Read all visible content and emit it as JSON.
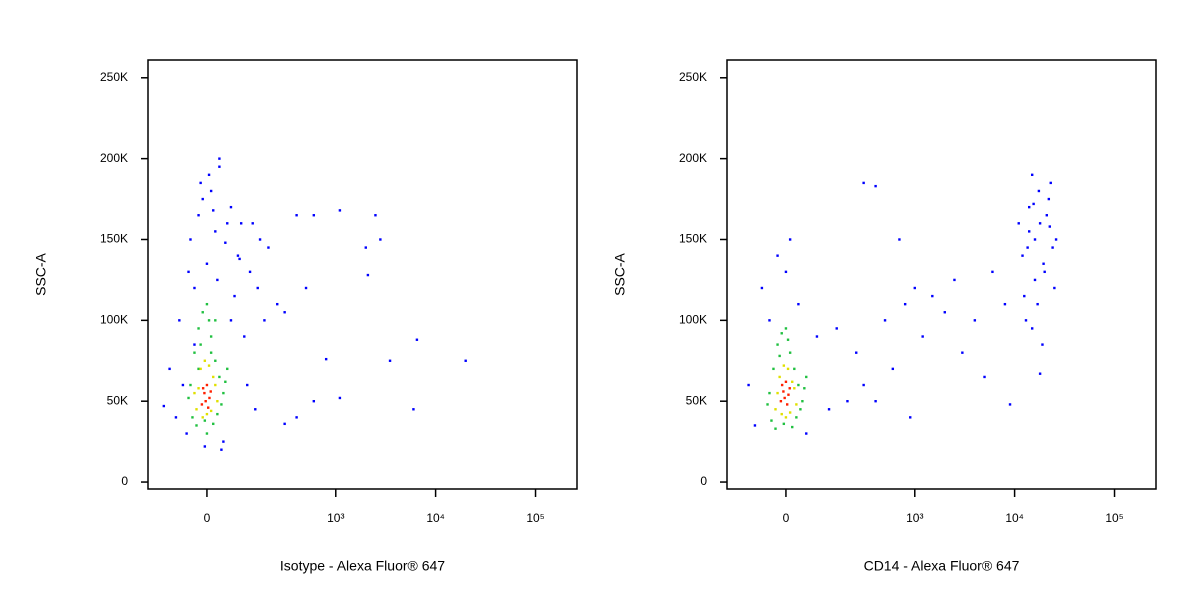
{
  "chart_data": [
    {
      "type": "scatter",
      "xlabel": "Isotype - Alexa Fluor® 647",
      "ylabel": "SSC-A",
      "xscale": "asinh",
      "xscale_width": 103,
      "xlim": [
        -187,
        260000
      ],
      "ylim": [
        -4300,
        261000
      ],
      "xticks": [
        0,
        {
          "value": 1000,
          "label": "10³"
        },
        {
          "value": 10000,
          "label": "10⁴"
        },
        {
          "value": 100000,
          "label": "10⁵"
        }
      ],
      "yticks": [
        0,
        {
          "value": 50000,
          "label": "50K"
        },
        {
          "value": 100000,
          "label": "100K"
        },
        {
          "value": 150000,
          "label": "150K"
        },
        {
          "value": 200000,
          "label": "200K"
        },
        {
          "value": 250000,
          "label": "250K"
        }
      ],
      "series": [
        {
          "color": "#0000ff",
          "x": [
            -60,
            -40,
            -20,
            10,
            30,
            60,
            80,
            120,
            150,
            200,
            250,
            -80,
            -50,
            40,
            100,
            60,
            -30,
            0,
            20,
            50,
            -10,
            90,
            130,
            180,
            400,
            600,
            1100,
            2500,
            2800,
            2000,
            2100,
            500,
            300,
            800,
            3500,
            6500,
            20000,
            6000,
            1100,
            600,
            400,
            300,
            -120,
            -100,
            -70,
            -30,
            110,
            140,
            30,
            70,
            -15,
            5,
            45,
            -45,
            25,
            85,
            160,
            -5,
            35,
            15
          ],
          "y": [
            60000,
            150000,
            165000,
            180000,
            195000,
            170000,
            140000,
            130000,
            120000,
            145000,
            110000,
            40000,
            30000,
            25000,
            90000,
            100000,
            120000,
            135000,
            155000,
            160000,
            175000,
            160000,
            160000,
            100000,
            165000,
            165000,
            168000,
            165000,
            150000,
            145000,
            128000,
            120000,
            105000,
            76000,
            75000,
            88000,
            75000,
            45000,
            52000,
            50000,
            40000,
            36000,
            47000,
            70000,
            100000,
            85000,
            60000,
            45000,
            200000,
            115000,
            185000,
            190000,
            148000,
            130000,
            125000,
            138000,
            150000,
            22000,
            20000,
            168000
          ]
        },
        {
          "color": "#20c040",
          "x": [
            -40,
            -30,
            -20,
            -10,
            0,
            10,
            20,
            30,
            40,
            50,
            -35,
            -25,
            -5,
            15,
            25,
            35,
            -15,
            5,
            45,
            -45,
            0,
            20,
            -20,
            10
          ],
          "y": [
            60000,
            80000,
            95000,
            105000,
            110000,
            90000,
            75000,
            65000,
            55000,
            70000,
            40000,
            35000,
            38000,
            36000,
            42000,
            48000,
            85000,
            100000,
            62000,
            52000,
            30000,
            100000,
            70000,
            80000
          ]
        },
        {
          "color": "#e0e000",
          "x": [
            -25,
            -15,
            -5,
            5,
            15,
            25,
            -20,
            0,
            20,
            -10,
            10,
            -30
          ],
          "y": [
            45000,
            70000,
            75000,
            72000,
            65000,
            50000,
            58000,
            42000,
            60000,
            40000,
            44000,
            55000
          ]
        },
        {
          "color": "#ff2000",
          "x": [
            -12,
            -6,
            0,
            6,
            -9,
            3,
            -3,
            9
          ],
          "y": [
            48000,
            55000,
            60000,
            52000,
            58000,
            46000,
            50000,
            56000
          ]
        }
      ]
    },
    {
      "type": "scatter",
      "xlabel": "CD14 - Alexa Fluor® 647",
      "ylabel": "SSC-A",
      "xscale": "asinh",
      "xscale_width": 103,
      "xlim": [
        -187,
        260000
      ],
      "ylim": [
        -4300,
        261000
      ],
      "xticks": [
        0,
        {
          "value": 1000,
          "label": "10³"
        },
        {
          "value": 10000,
          "label": "10⁴"
        },
        {
          "value": 100000,
          "label": "10⁵"
        }
      ],
      "yticks": [
        0,
        {
          "value": 50000,
          "label": "50K"
        },
        {
          "value": 100000,
          "label": "100K"
        },
        {
          "value": 150000,
          "label": "150K"
        },
        {
          "value": 200000,
          "label": "200K"
        },
        {
          "value": 250000,
          "label": "250K"
        }
      ],
      "series": [
        {
          "color": "#0000ff",
          "x": [
            -60,
            -40,
            0,
            30,
            80,
            150,
            250,
            300,
            400,
            500,
            600,
            700,
            800,
            900,
            1200,
            1500,
            2000,
            2500,
            3000,
            4000,
            5000,
            6000,
            8000,
            9000,
            300,
            400,
            1000,
            12000,
            14000,
            15000,
            16000,
            18000,
            20000,
            22000,
            24000,
            25000,
            17000,
            13000,
            19000,
            15000,
            21000,
            23000,
            16000,
            14000,
            12500,
            26000,
            18000,
            -100,
            -80,
            50,
            120,
            200,
            -20,
            10,
            11000,
            17500,
            19500,
            22500,
            13500,
            15500
          ],
          "y": [
            120000,
            100000,
            130000,
            110000,
            90000,
            95000,
            80000,
            60000,
            50000,
            100000,
            70000,
            150000,
            110000,
            40000,
            90000,
            115000,
            105000,
            125000,
            80000,
            100000,
            65000,
            130000,
            110000,
            48000,
            185000,
            183000,
            120000,
            140000,
            170000,
            190000,
            150000,
            160000,
            130000,
            175000,
            145000,
            120000,
            110000,
            100000,
            85000,
            95000,
            165000,
            185000,
            125000,
            155000,
            115000,
            150000,
            67000,
            60000,
            35000,
            30000,
            45000,
            50000,
            140000,
            150000,
            160000,
            180000,
            135000,
            158000,
            145000,
            172000
          ]
        },
        {
          "color": "#20c040",
          "x": [
            -40,
            -30,
            -20,
            -10,
            0,
            10,
            20,
            30,
            40,
            50,
            -35,
            -25,
            -5,
            15,
            25,
            35,
            -15,
            5,
            45,
            -45
          ],
          "y": [
            55000,
            70000,
            85000,
            92000,
            95000,
            80000,
            70000,
            60000,
            50000,
            65000,
            38000,
            33000,
            36000,
            34000,
            40000,
            45000,
            78000,
            88000,
            58000,
            48000
          ]
        },
        {
          "color": "#e0e000",
          "x": [
            -25,
            -15,
            -5,
            5,
            15,
            25,
            -20,
            0,
            20,
            -10,
            10
          ],
          "y": [
            45000,
            65000,
            72000,
            70000,
            62000,
            48000,
            55000,
            40000,
            58000,
            42000,
            43000
          ]
        },
        {
          "color": "#ff2000",
          "x": [
            -12,
            -6,
            0,
            6,
            -9,
            3,
            -3,
            9
          ],
          "y": [
            50000,
            56000,
            62000,
            54000,
            60000,
            48000,
            52000,
            58000
          ]
        }
      ]
    }
  ]
}
